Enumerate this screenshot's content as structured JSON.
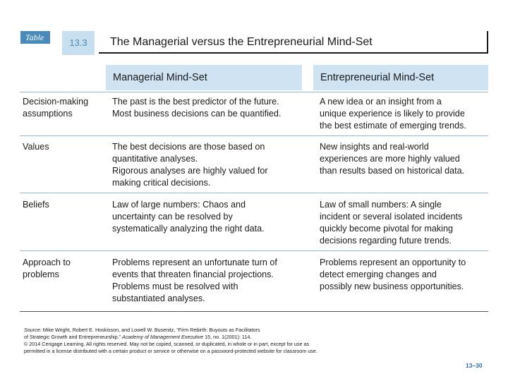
{
  "table_tag": "Table",
  "table_number": "13.3",
  "title": "The Managerial versus the Entrepreneurial Mind-Set",
  "columns": [
    "Managerial Mind-Set",
    "Entrepreneurial Mind-Set"
  ],
  "rows": [
    {
      "label": [
        "Decision-making",
        "assumptions"
      ],
      "managerial": [
        "The past is the best predictor of the future.",
        "Most business decisions can be quantified."
      ],
      "entrepreneurial": [
        "A new idea or an insight from a",
        "unique experience is likely to provide",
        "the best estimate of emerging trends."
      ]
    },
    {
      "label": [
        "Values"
      ],
      "managerial": [
        "The best decisions are those based on",
        "quantitative analyses.",
        "Rigorous analyses are highly valued for",
        "making critical decisions."
      ],
      "entrepreneurial": [
        "New insights and real-world",
        "experiences are more highly valued",
        "than results based on historical data."
      ]
    },
    {
      "label": [
        "Beliefs"
      ],
      "managerial": [
        "Law of large numbers: Chaos and",
        "uncertainty can be resolved by",
        "systematically analyzing the right data."
      ],
      "entrepreneurial": [
        "Law of small numbers: A single",
        "incident or several isolated incidents",
        "quickly become pivotal for making",
        "decisions regarding future trends."
      ]
    },
    {
      "label": [
        "Approach to",
        "problems"
      ],
      "managerial": [
        "Problems represent an unfortunate turn of",
        "events that threaten financial projections.",
        "Problems must be resolved with",
        "substantiated analyses."
      ],
      "entrepreneurial": [
        "Problems represent an opportunity to",
        "detect emerging changes and",
        "possibly new business opportunities."
      ]
    }
  ],
  "footer": {
    "source_prefix": "Source:",
    "source_text": "Mike Wright, Robert E. Hoskisson, and Lowell W. Busenitz, “Firm Rebirth: Buyouts as Facilitators",
    "source_line2_pre": "of Strategic Growth and Entrepreneurship,”",
    "source_journal": "Academy of Management Executive",
    "source_line2_post": "15, no. 1(2001): 114.",
    "copyright_line1": "© 2014 Cengage Learning. All rights reserved. May not be copied, scanned, or duplicated, in whole or in part, except for use as",
    "copyright_line2": "permitted in a license distributed with a certain product or service or otherwise on a password-protected website for classroom use."
  },
  "page_number": "13–30"
}
